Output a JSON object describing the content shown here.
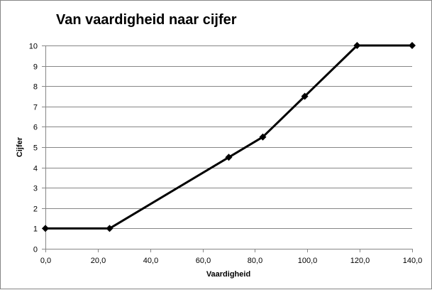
{
  "chart_data": {
    "type": "line",
    "title": "Van vaardigheid naar cijfer",
    "xlabel": "Vaardigheid",
    "ylabel": "Cijfer",
    "xlim": [
      0,
      140
    ],
    "ylim": [
      0,
      10
    ],
    "x_ticks": [
      0,
      20,
      40,
      60,
      80,
      100,
      120,
      140
    ],
    "x_tick_labels": [
      "0,0",
      "20,0",
      "40,0",
      "60,0",
      "80,0",
      "100,0",
      "120,0",
      "140,0"
    ],
    "y_ticks": [
      0,
      1,
      2,
      3,
      4,
      5,
      6,
      7,
      8,
      9,
      10
    ],
    "y_tick_labels": [
      "0",
      "1",
      "2",
      "3",
      "4",
      "5",
      "6",
      "7",
      "8",
      "9",
      "10"
    ],
    "grid": true,
    "legend": "none",
    "series": [
      {
        "color": "#000000",
        "marker": "diamond",
        "x": [
          0,
          24.5,
          70,
          83,
          99,
          119,
          140
        ],
        "y": [
          1,
          1,
          4.5,
          5.5,
          7.5,
          10,
          10
        ]
      }
    ]
  }
}
